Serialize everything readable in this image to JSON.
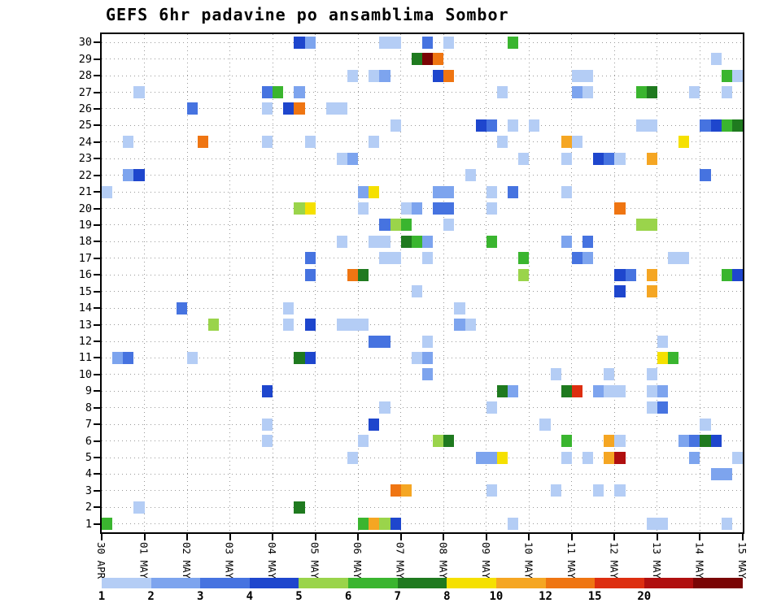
{
  "chart_data": {
    "type": "heatmap",
    "title": "GEFS 6hr padavine po ansamblima Sombor",
    "x": {
      "tick_labels": [
        "30 APR",
        "01 MAY",
        "02 MAY",
        "03 MAY",
        "04 MAY",
        "05 MAY",
        "06 MAY",
        "07 MAY",
        "08 MAY",
        "09 MAY",
        "10 MAY",
        "11 MAY",
        "12 MAY",
        "13 MAY",
        "14 MAY",
        "15 MAY"
      ],
      "steps_per_day": 4,
      "total_steps": 60
    },
    "y": {
      "members": 30,
      "tick_labels": [
        "30",
        "29",
        "28",
        "27",
        "26",
        "25",
        "24",
        "23",
        "22",
        "21",
        "20",
        "19",
        "18",
        "17",
        "16",
        "15",
        "14",
        "13",
        "12",
        "11",
        "10",
        "9",
        "8",
        "7",
        "6",
        "5",
        "4",
        "3",
        "2",
        "1"
      ]
    },
    "legend": {
      "tick_labels": [
        "1",
        "2",
        "3",
        "4",
        "5",
        "6",
        "7",
        "8",
        "10",
        "12",
        "15",
        "20"
      ]
    },
    "palette": [
      "#b4cdf5",
      "#7da4ee",
      "#4673e0",
      "#1e46cd",
      "#9ad44b",
      "#3ab52f",
      "#1f7a1f",
      "#f5e000",
      "#f5a623",
      "#ef7512",
      "#dd2e10",
      "#b00f0f",
      "#7a0505"
    ],
    "cells": [
      [
        30,
        18,
        4
      ],
      [
        30,
        19,
        2
      ],
      [
        30,
        26,
        1
      ],
      [
        30,
        27,
        1
      ],
      [
        30,
        30,
        3
      ],
      [
        30,
        32,
        1
      ],
      [
        30,
        38,
        6
      ],
      [
        29,
        29,
        7
      ],
      [
        29,
        30,
        13
      ],
      [
        29,
        31,
        10
      ],
      [
        29,
        57,
        1
      ],
      [
        28,
        23,
        1
      ],
      [
        28,
        25,
        1
      ],
      [
        28,
        26,
        2
      ],
      [
        28,
        31,
        4
      ],
      [
        28,
        32,
        10
      ],
      [
        28,
        44,
        1
      ],
      [
        28,
        45,
        1
      ],
      [
        28,
        58,
        6
      ],
      [
        28,
        59,
        1
      ],
      [
        27,
        3,
        1
      ],
      [
        27,
        15,
        3
      ],
      [
        27,
        16,
        6
      ],
      [
        27,
        18,
        2
      ],
      [
        27,
        37,
        1
      ],
      [
        27,
        44,
        2
      ],
      [
        27,
        45,
        1
      ],
      [
        27,
        50,
        6
      ],
      [
        27,
        51,
        7
      ],
      [
        27,
        55,
        1
      ],
      [
        27,
        58,
        1
      ],
      [
        26,
        8,
        3
      ],
      [
        26,
        15,
        1
      ],
      [
        26,
        17,
        4
      ],
      [
        26,
        18,
        10
      ],
      [
        26,
        21,
        1
      ],
      [
        26,
        22,
        1
      ],
      [
        25,
        27,
        1
      ],
      [
        25,
        35,
        4
      ],
      [
        25,
        36,
        3
      ],
      [
        25,
        38,
        1
      ],
      [
        25,
        40,
        1
      ],
      [
        25,
        50,
        1
      ],
      [
        25,
        51,
        1
      ],
      [
        25,
        56,
        3
      ],
      [
        25,
        57,
        4
      ],
      [
        25,
        58,
        6
      ],
      [
        25,
        59,
        7
      ],
      [
        24,
        2,
        1
      ],
      [
        24,
        9,
        10
      ],
      [
        24,
        15,
        1
      ],
      [
        24,
        19,
        1
      ],
      [
        24,
        25,
        1
      ],
      [
        24,
        37,
        1
      ],
      [
        24,
        43,
        9
      ],
      [
        24,
        44,
        1
      ],
      [
        24,
        54,
        8
      ],
      [
        23,
        22,
        1
      ],
      [
        23,
        23,
        2
      ],
      [
        23,
        39,
        1
      ],
      [
        23,
        43,
        1
      ],
      [
        23,
        46,
        4
      ],
      [
        23,
        47,
        3
      ],
      [
        23,
        48,
        1
      ],
      [
        23,
        51,
        9
      ],
      [
        22,
        2,
        2
      ],
      [
        22,
        3,
        4
      ],
      [
        22,
        34,
        1
      ],
      [
        22,
        56,
        3
      ],
      [
        21,
        0,
        1
      ],
      [
        21,
        24,
        2
      ],
      [
        21,
        25,
        8
      ],
      [
        21,
        31,
        2
      ],
      [
        21,
        32,
        2
      ],
      [
        21,
        36,
        1
      ],
      [
        21,
        38,
        3
      ],
      [
        21,
        43,
        1
      ],
      [
        20,
        18,
        5
      ],
      [
        20,
        19,
        8
      ],
      [
        20,
        24,
        1
      ],
      [
        20,
        28,
        1
      ],
      [
        20,
        29,
        2
      ],
      [
        20,
        31,
        3
      ],
      [
        20,
        32,
        3
      ],
      [
        20,
        36,
        1
      ],
      [
        20,
        48,
        10
      ],
      [
        19,
        26,
        3
      ],
      [
        19,
        27,
        5
      ],
      [
        19,
        28,
        6
      ],
      [
        19,
        32,
        1
      ],
      [
        19,
        50,
        5
      ],
      [
        19,
        51,
        5
      ],
      [
        18,
        22,
        1
      ],
      [
        18,
        25,
        1
      ],
      [
        18,
        26,
        1
      ],
      [
        18,
        28,
        7
      ],
      [
        18,
        29,
        6
      ],
      [
        18,
        30,
        2
      ],
      [
        18,
        36,
        6
      ],
      [
        18,
        43,
        2
      ],
      [
        18,
        45,
        3
      ],
      [
        17,
        19,
        3
      ],
      [
        17,
        26,
        1
      ],
      [
        17,
        27,
        1
      ],
      [
        17,
        30,
        1
      ],
      [
        17,
        39,
        6
      ],
      [
        17,
        44,
        3
      ],
      [
        17,
        45,
        2
      ],
      [
        17,
        53,
        1
      ],
      [
        17,
        54,
        1
      ],
      [
        16,
        19,
        3
      ],
      [
        16,
        23,
        10
      ],
      [
        16,
        24,
        7
      ],
      [
        16,
        39,
        5
      ],
      [
        16,
        48,
        4
      ],
      [
        16,
        49,
        3
      ],
      [
        16,
        51,
        9
      ],
      [
        16,
        58,
        6
      ],
      [
        16,
        59,
        4
      ],
      [
        15,
        29,
        1
      ],
      [
        15,
        48,
        4
      ],
      [
        15,
        51,
        9
      ],
      [
        14,
        7,
        3
      ],
      [
        14,
        17,
        1
      ],
      [
        14,
        33,
        1
      ],
      [
        13,
        10,
        5
      ],
      [
        13,
        17,
        1
      ],
      [
        13,
        19,
        4
      ],
      [
        13,
        22,
        1
      ],
      [
        13,
        23,
        1
      ],
      [
        13,
        24,
        1
      ],
      [
        13,
        33,
        2
      ],
      [
        13,
        34,
        1
      ],
      [
        12,
        25,
        3
      ],
      [
        12,
        26,
        3
      ],
      [
        12,
        30,
        1
      ],
      [
        12,
        52,
        1
      ],
      [
        11,
        1,
        2
      ],
      [
        11,
        2,
        3
      ],
      [
        11,
        8,
        1
      ],
      [
        11,
        18,
        7
      ],
      [
        11,
        19,
        4
      ],
      [
        11,
        29,
        1
      ],
      [
        11,
        30,
        2
      ],
      [
        11,
        52,
        8
      ],
      [
        11,
        53,
        6
      ],
      [
        10,
        30,
        2
      ],
      [
        10,
        42,
        1
      ],
      [
        10,
        47,
        1
      ],
      [
        10,
        51,
        1
      ],
      [
        9,
        15,
        4
      ],
      [
        9,
        37,
        7
      ],
      [
        9,
        38,
        2
      ],
      [
        9,
        43,
        7
      ],
      [
        9,
        44,
        11
      ],
      [
        9,
        46,
        2
      ],
      [
        9,
        47,
        1
      ],
      [
        9,
        48,
        1
      ],
      [
        9,
        51,
        1
      ],
      [
        9,
        52,
        2
      ],
      [
        8,
        26,
        1
      ],
      [
        8,
        36,
        1
      ],
      [
        8,
        51,
        1
      ],
      [
        8,
        52,
        3
      ],
      [
        7,
        15,
        1
      ],
      [
        7,
        25,
        4
      ],
      [
        7,
        41,
        1
      ],
      [
        7,
        56,
        1
      ],
      [
        6,
        15,
        1
      ],
      [
        6,
        24,
        1
      ],
      [
        6,
        31,
        5
      ],
      [
        6,
        32,
        7
      ],
      [
        6,
        43,
        6
      ],
      [
        6,
        47,
        9
      ],
      [
        6,
        48,
        1
      ],
      [
        6,
        54,
        2
      ],
      [
        6,
        55,
        3
      ],
      [
        6,
        56,
        7
      ],
      [
        6,
        57,
        4
      ],
      [
        5,
        23,
        1
      ],
      [
        5,
        35,
        2
      ],
      [
        5,
        36,
        2
      ],
      [
        5,
        37,
        8
      ],
      [
        5,
        43,
        1
      ],
      [
        5,
        45,
        1
      ],
      [
        5,
        47,
        9
      ],
      [
        5,
        48,
        12
      ],
      [
        5,
        55,
        2
      ],
      [
        5,
        59,
        1
      ],
      [
        4,
        57,
        2
      ],
      [
        4,
        58,
        2
      ],
      [
        3,
        27,
        10
      ],
      [
        3,
        28,
        9
      ],
      [
        3,
        36,
        1
      ],
      [
        3,
        42,
        1
      ],
      [
        3,
        46,
        1
      ],
      [
        3,
        48,
        1
      ],
      [
        2,
        3,
        1
      ],
      [
        2,
        18,
        7
      ],
      [
        1,
        0,
        6
      ],
      [
        1,
        24,
        6
      ],
      [
        1,
        25,
        9
      ],
      [
        1,
        26,
        5
      ],
      [
        1,
        27,
        4
      ],
      [
        1,
        38,
        1
      ],
      [
        1,
        51,
        1
      ],
      [
        1,
        52,
        1
      ],
      [
        1,
        58,
        1
      ]
    ]
  }
}
